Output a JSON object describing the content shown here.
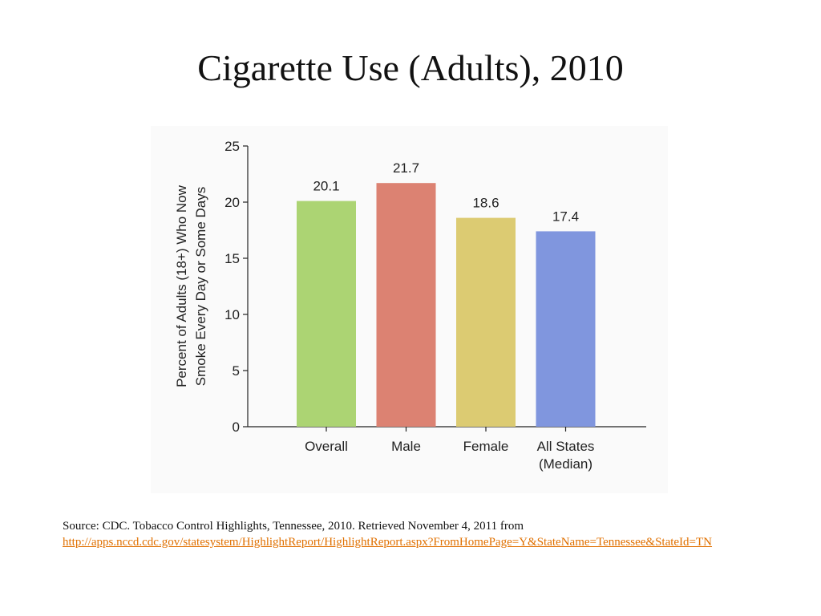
{
  "slide": {
    "title": "Cigarette Use (Adults), 2010"
  },
  "source": {
    "text": "Source: CDC. Tobacco Control Highlights, Tennessee, 2010. Retrieved November 4, 2011 from",
    "link": "http://apps.nccd.cdc.gov/statesystem/HighlightReport/HighlightReport.aspx?FromHomePage=Y&StateName=Tennessee&StateId=TN",
    "link_color": "#e07000"
  },
  "chart_data": {
    "type": "bar",
    "title": "",
    "xlabel": "",
    "ylabel_lines": [
      "Percent of Adults (18+) Who Now",
      "Smoke Every Day or Some Days"
    ],
    "ylim": [
      0,
      25
    ],
    "yticks": [
      "0",
      "5",
      "10",
      "15",
      "20",
      "25"
    ],
    "grid": false,
    "categories": [
      {
        "label_lines": [
          "Overall"
        ],
        "value": 20.1,
        "value_label": "20.1",
        "color": "#acd473"
      },
      {
        "label_lines": [
          "Male"
        ],
        "value": 21.7,
        "value_label": "21.7",
        "color": "#dc8272"
      },
      {
        "label_lines": [
          "Female"
        ],
        "value": 18.6,
        "value_label": "18.6",
        "color": "#dccb72"
      },
      {
        "label_lines": [
          "All States",
          "(Median)"
        ],
        "value": 17.4,
        "value_label": "17.4",
        "color": "#8096de"
      }
    ]
  }
}
